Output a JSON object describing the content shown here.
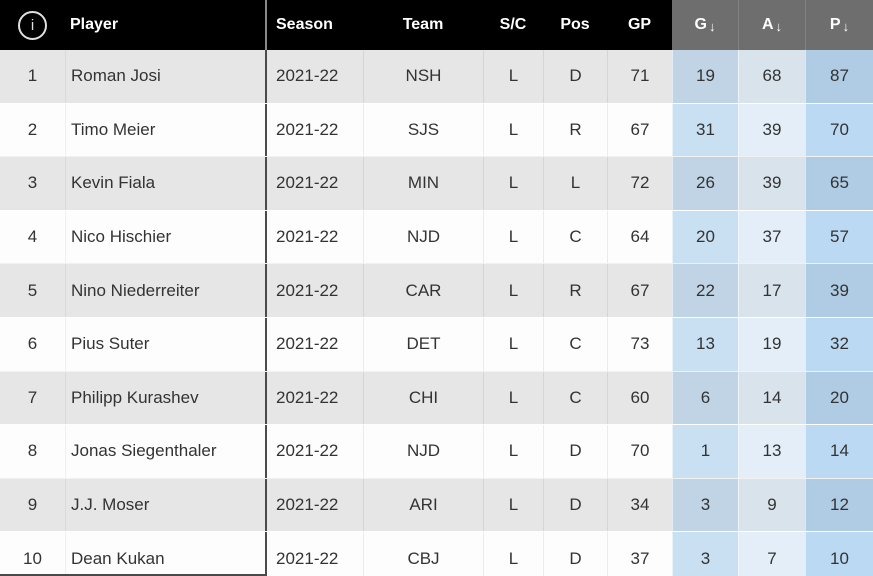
{
  "colors": {
    "header_bg": "#000000",
    "header_sorted_bg": "#6e6e6e",
    "header_text": "#ffffff",
    "row_odd_bg": "#e6e6e6",
    "row_even_bg": "#fdfdfd",
    "goals_col_odd": "#c0d4e6",
    "goals_col_even": "#c9e0f3",
    "assists_col_odd": "#d9e3ec",
    "assists_col_even": "#e3eef8",
    "points_col_odd": "#afcce4",
    "points_col_even": "#bbd9f2",
    "player_divider": "#4b4b4b",
    "body_text": "#333333"
  },
  "table": {
    "info_icon_glyph": "i",
    "sort_arrow": "↓",
    "headers": {
      "player": "Player",
      "season": "Season",
      "team": "Team",
      "shoots_catches": "S/C",
      "position": "Pos",
      "games_played": "GP",
      "goals": "G",
      "assists": "A",
      "points": "P"
    },
    "rows": [
      {
        "rank": "1",
        "player": "Roman Josi",
        "season": "2021-22",
        "team": "NSH",
        "sc": "L",
        "pos": "D",
        "gp": "71",
        "g": "19",
        "a": "68",
        "p": "87"
      },
      {
        "rank": "2",
        "player": "Timo Meier",
        "season": "2021-22",
        "team": "SJS",
        "sc": "L",
        "pos": "R",
        "gp": "67",
        "g": "31",
        "a": "39",
        "p": "70"
      },
      {
        "rank": "3",
        "player": "Kevin Fiala",
        "season": "2021-22",
        "team": "MIN",
        "sc": "L",
        "pos": "L",
        "gp": "72",
        "g": "26",
        "a": "39",
        "p": "65"
      },
      {
        "rank": "4",
        "player": "Nico Hischier",
        "season": "2021-22",
        "team": "NJD",
        "sc": "L",
        "pos": "C",
        "gp": "64",
        "g": "20",
        "a": "37",
        "p": "57"
      },
      {
        "rank": "5",
        "player": "Nino Niederreiter",
        "season": "2021-22",
        "team": "CAR",
        "sc": "L",
        "pos": "R",
        "gp": "67",
        "g": "22",
        "a": "17",
        "p": "39"
      },
      {
        "rank": "6",
        "player": "Pius Suter",
        "season": "2021-22",
        "team": "DET",
        "sc": "L",
        "pos": "C",
        "gp": "73",
        "g": "13",
        "a": "19",
        "p": "32"
      },
      {
        "rank": "7",
        "player": "Philipp Kurashev",
        "season": "2021-22",
        "team": "CHI",
        "sc": "L",
        "pos": "C",
        "gp": "60",
        "g": "6",
        "a": "14",
        "p": "20"
      },
      {
        "rank": "8",
        "player": "Jonas Siegenthaler",
        "season": "2021-22",
        "team": "NJD",
        "sc": "L",
        "pos": "D",
        "gp": "70",
        "g": "1",
        "a": "13",
        "p": "14"
      },
      {
        "rank": "9",
        "player": "J.J. Moser",
        "season": "2021-22",
        "team": "ARI",
        "sc": "L",
        "pos": "D",
        "gp": "34",
        "g": "3",
        "a": "9",
        "p": "12"
      },
      {
        "rank": "10",
        "player": "Dean Kukan",
        "season": "2021-22",
        "team": "CBJ",
        "sc": "L",
        "pos": "D",
        "gp": "37",
        "g": "3",
        "a": "7",
        "p": "10"
      }
    ]
  }
}
